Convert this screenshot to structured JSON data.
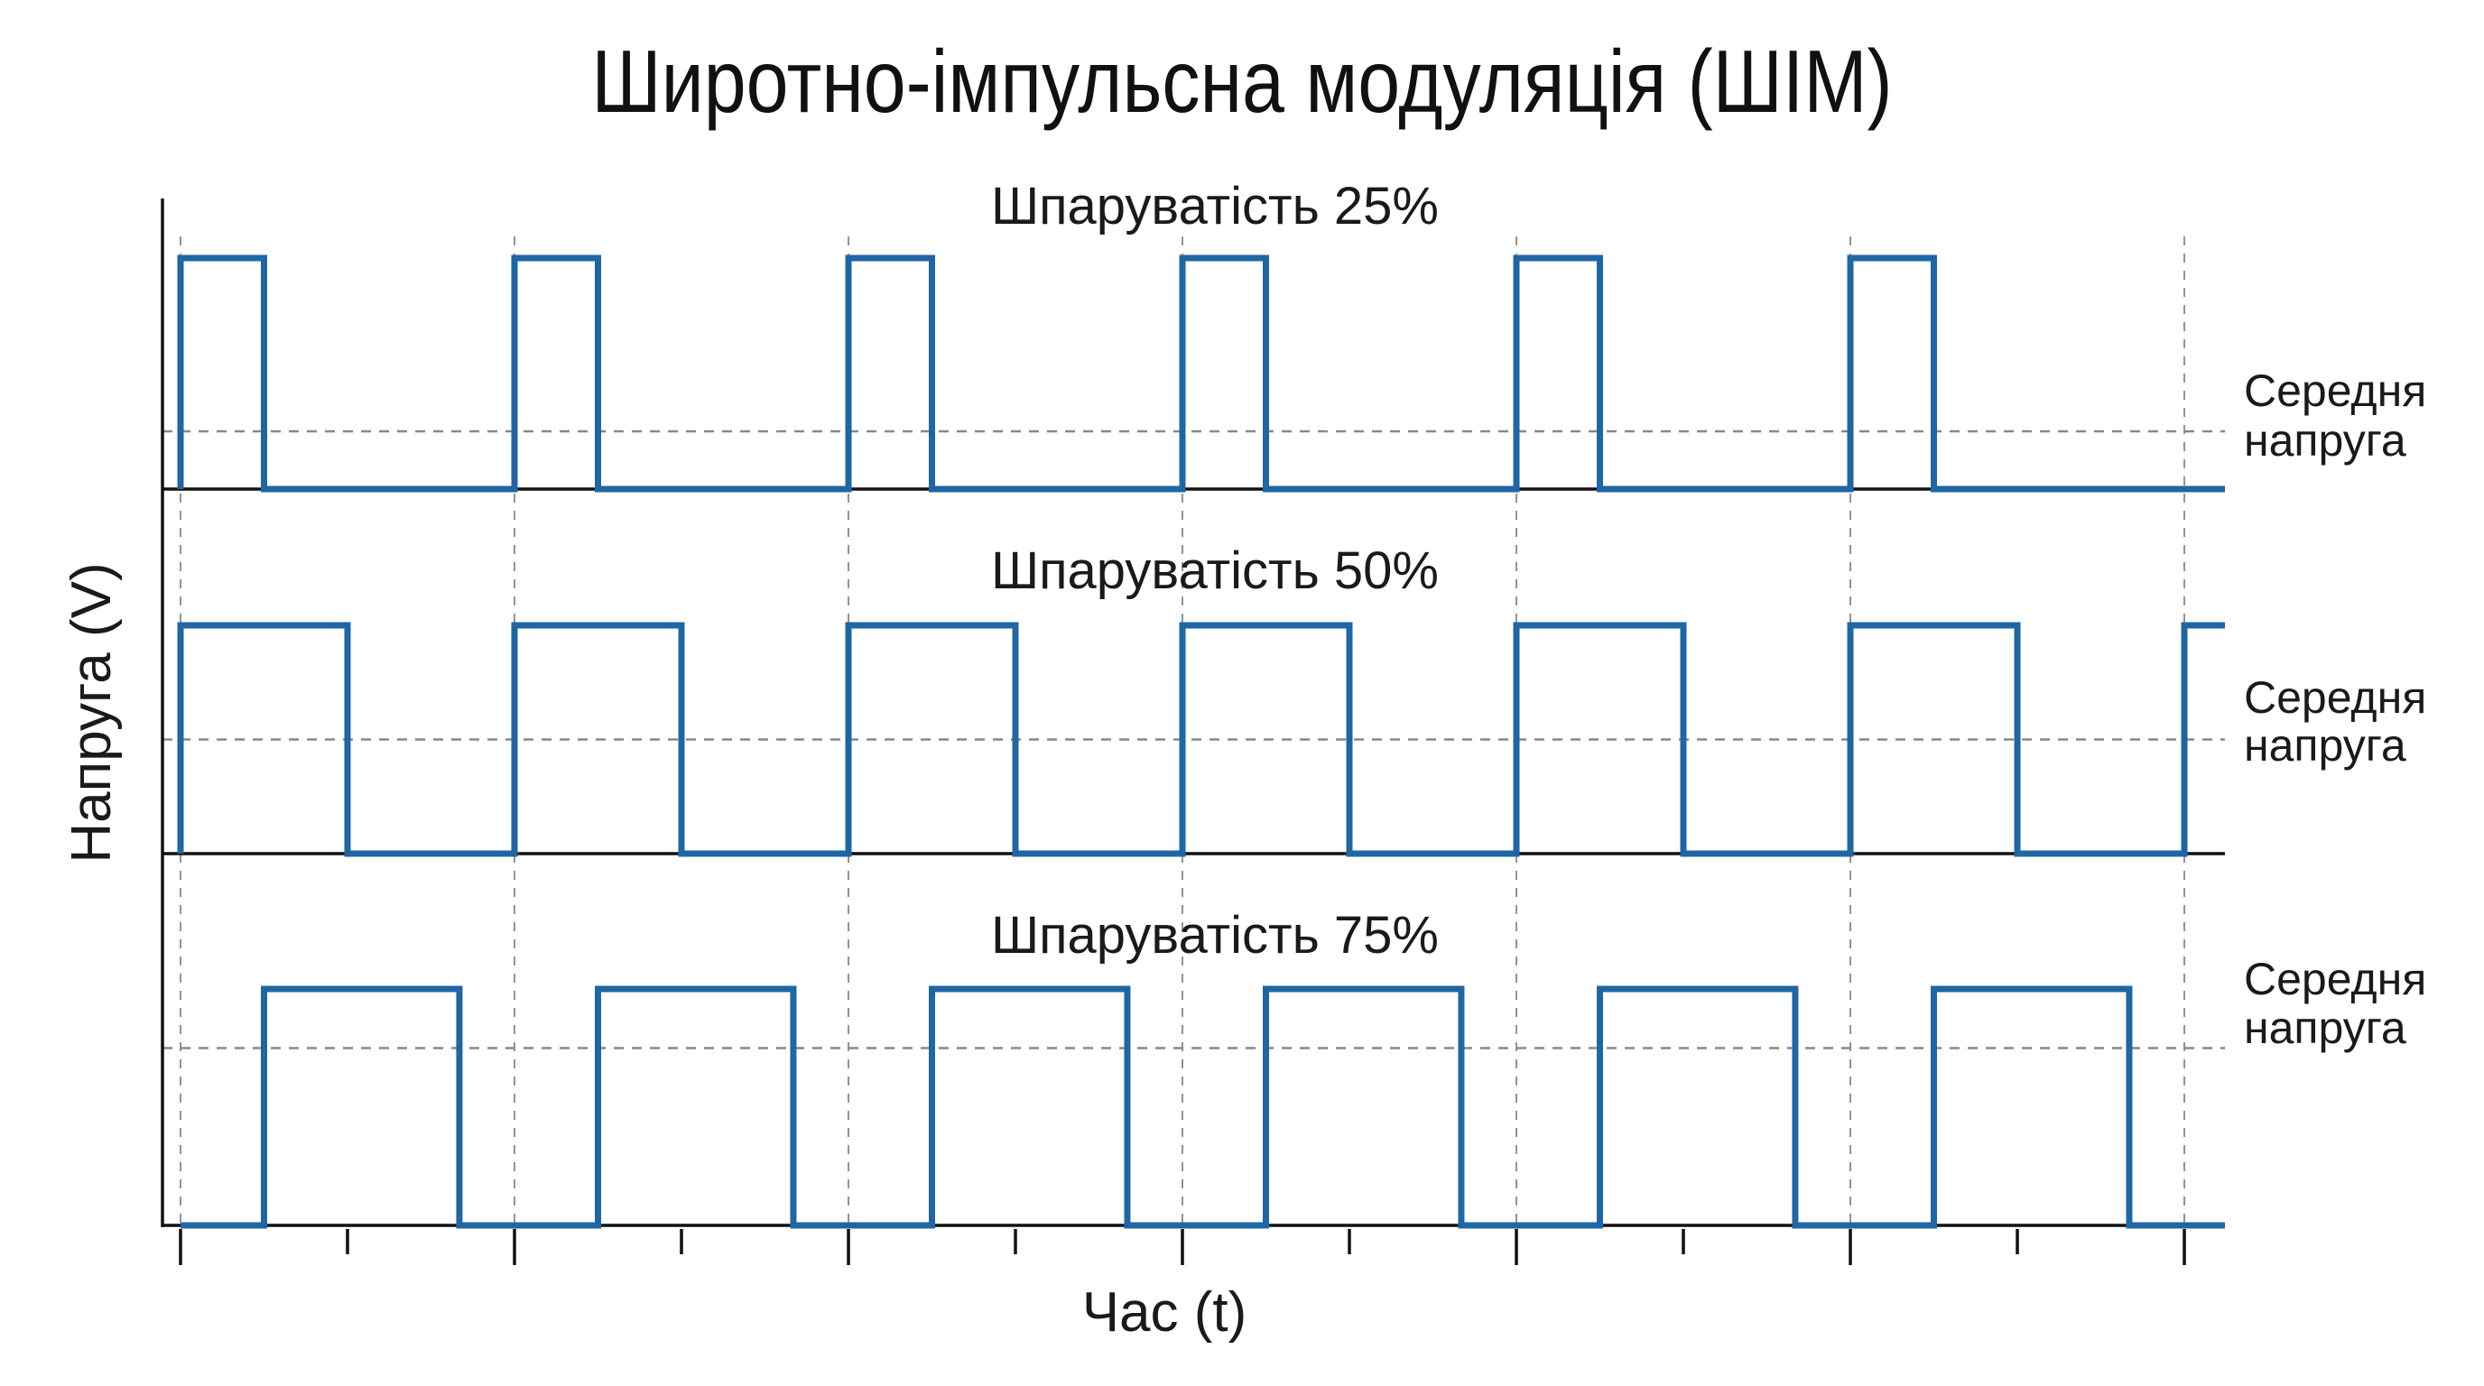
{
  "title": "Широтно-імпульсна модуляція (ШІМ)",
  "chart_data": [
    {
      "type": "line",
      "title": "Шпаруватість 25%",
      "duty_cycle_percent": 25,
      "periods_shown": 6,
      "x_label": "",
      "y_label": "",
      "average_label": [
        "Середня",
        "напруга"
      ],
      "average_level_fraction": 0.25,
      "line_color": "#1f66a5"
    },
    {
      "type": "line",
      "title": "Шпаруватість 50%",
      "duty_cycle_percent": 50,
      "periods_shown": 6,
      "x_label": "",
      "y_label": "",
      "average_label": [
        "Середня",
        "напруга"
      ],
      "average_level_fraction": 0.5,
      "line_color": "#1f66a5"
    },
    {
      "type": "line",
      "title": "Шпаруватість 75%",
      "duty_cycle_percent": 75,
      "periods_shown": 6,
      "x_label": "Час (t)",
      "y_label": "Напруга (V)",
      "average_label": [
        "Середня",
        "напруга"
      ],
      "average_level_fraction": 0.75,
      "line_color": "#1f66a5"
    }
  ],
  "axes": {
    "x_label": "Час (t)",
    "y_label": "Напруга (V)",
    "major_ticks_per_period": 1,
    "minor_ticks_per_period": 2
  },
  "colors": {
    "signal": "#1f66a5",
    "axis": "#111111",
    "grid": "#888888"
  }
}
